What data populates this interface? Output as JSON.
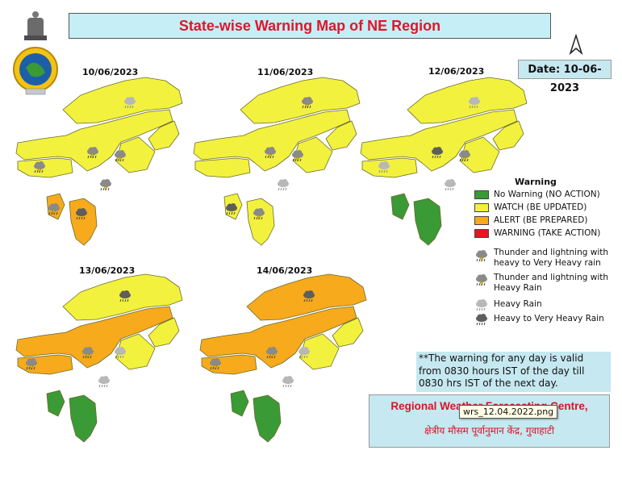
{
  "title": "State-wise Warning Map of NE Region",
  "date_label": "Date: 10-06-2023",
  "colors": {
    "no_warning": "#3a9a36",
    "watch": "#f2f23e",
    "alert": "#f6aa1c",
    "warning": "#e0171e",
    "title_text": "#e0162b",
    "box_bg": "#c6eef6"
  },
  "maps": [
    {
      "date": "10/06/2023",
      "regions": {
        "arunachal": "watch",
        "assam": "watch",
        "meghalaya": "watch",
        "nagaland": "watch",
        "manipur": "watch",
        "tripura": "alert",
        "mizoram": "alert"
      },
      "symbols": [
        "heavy-rain",
        "thunder-heavy-rain",
        "thunder-heavy-rain",
        "thunder-very-heavy-rain",
        "thunder-heavy-rain",
        "thunder-heavy-rain",
        "very-heavy-rain"
      ]
    },
    {
      "date": "11/06/2023",
      "regions": {
        "arunachal": "watch",
        "assam": "watch",
        "meghalaya": "watch",
        "nagaland": "watch",
        "manipur": "watch",
        "tripura": "watch",
        "mizoram": "watch"
      },
      "symbols": [
        "thunder-heavy-rain",
        "thunder-heavy-rain",
        "thunder-heavy-rain",
        "heavy-rain",
        "very-heavy-rain",
        "thunder-heavy-rain"
      ]
    },
    {
      "date": "12/06/2023",
      "regions": {
        "arunachal": "watch",
        "assam": "watch",
        "meghalaya": "watch",
        "nagaland": "watch",
        "manipur": "watch",
        "tripura": "no_warning",
        "mizoram": "no_warning"
      },
      "symbols": [
        "heavy-rain",
        "very-heavy-rain",
        "heavy-rain",
        "thunder-heavy-rain",
        "heavy-rain"
      ]
    },
    {
      "date": "13/06/2023",
      "regions": {
        "arunachal": "watch",
        "assam": "alert",
        "meghalaya": "alert",
        "nagaland": "watch",
        "manipur": "watch",
        "tripura": "no_warning",
        "mizoram": "no_warning"
      },
      "symbols": [
        "very-heavy-rain",
        "thunder-heavy-rain",
        "thunder-heavy-rain",
        "heavy-rain",
        "heavy-rain"
      ]
    },
    {
      "date": "14/06/2023",
      "regions": {
        "arunachal": "alert",
        "assam": "alert",
        "meghalaya": "alert",
        "nagaland": "watch",
        "manipur": "watch",
        "tripura": "no_warning",
        "mizoram": "no_warning"
      },
      "symbols": [
        "very-heavy-rain",
        "thunder-heavy-rain",
        "thunder-heavy-rain",
        "heavy-rain",
        "heavy-rain"
      ]
    }
  ],
  "legend": {
    "title": "Warning",
    "levels": [
      {
        "key": "no_warning",
        "label": "No Warning (NO ACTION)"
      },
      {
        "key": "watch",
        "label": "WATCH (BE UPDATED)"
      },
      {
        "key": "alert",
        "label": "ALERT (BE PREPARED)"
      },
      {
        "key": "warning",
        "label": "WARNING (TAKE ACTION)"
      }
    ],
    "symbols": [
      {
        "icon": "thunder-very-heavy-rain-icon",
        "label": "Thunder and lightning with heavy to Very Heavy rain"
      },
      {
        "icon": "thunder-heavy-rain-icon",
        "label": "Thunder and lightning with Heavy Rain"
      },
      {
        "icon": "heavy-rain-icon",
        "label": "Heavy Rain"
      },
      {
        "icon": "very-heavy-rain-icon",
        "label": "Heavy to Very Heavy Rain"
      }
    ]
  },
  "validity_note": "**The warning for any day is valid from 0830 hours IST of the day till 0830 hrs IST of the next day.",
  "rwfc": {
    "english": "Regional Weather Forecasting Centre,",
    "city": "Guwahati",
    "hindi": "क्षेत्रीय मौसम पूर्वानुमान केंद्र, गुवाहाटी"
  },
  "tooltip": "wrs_12.04.2022.png"
}
